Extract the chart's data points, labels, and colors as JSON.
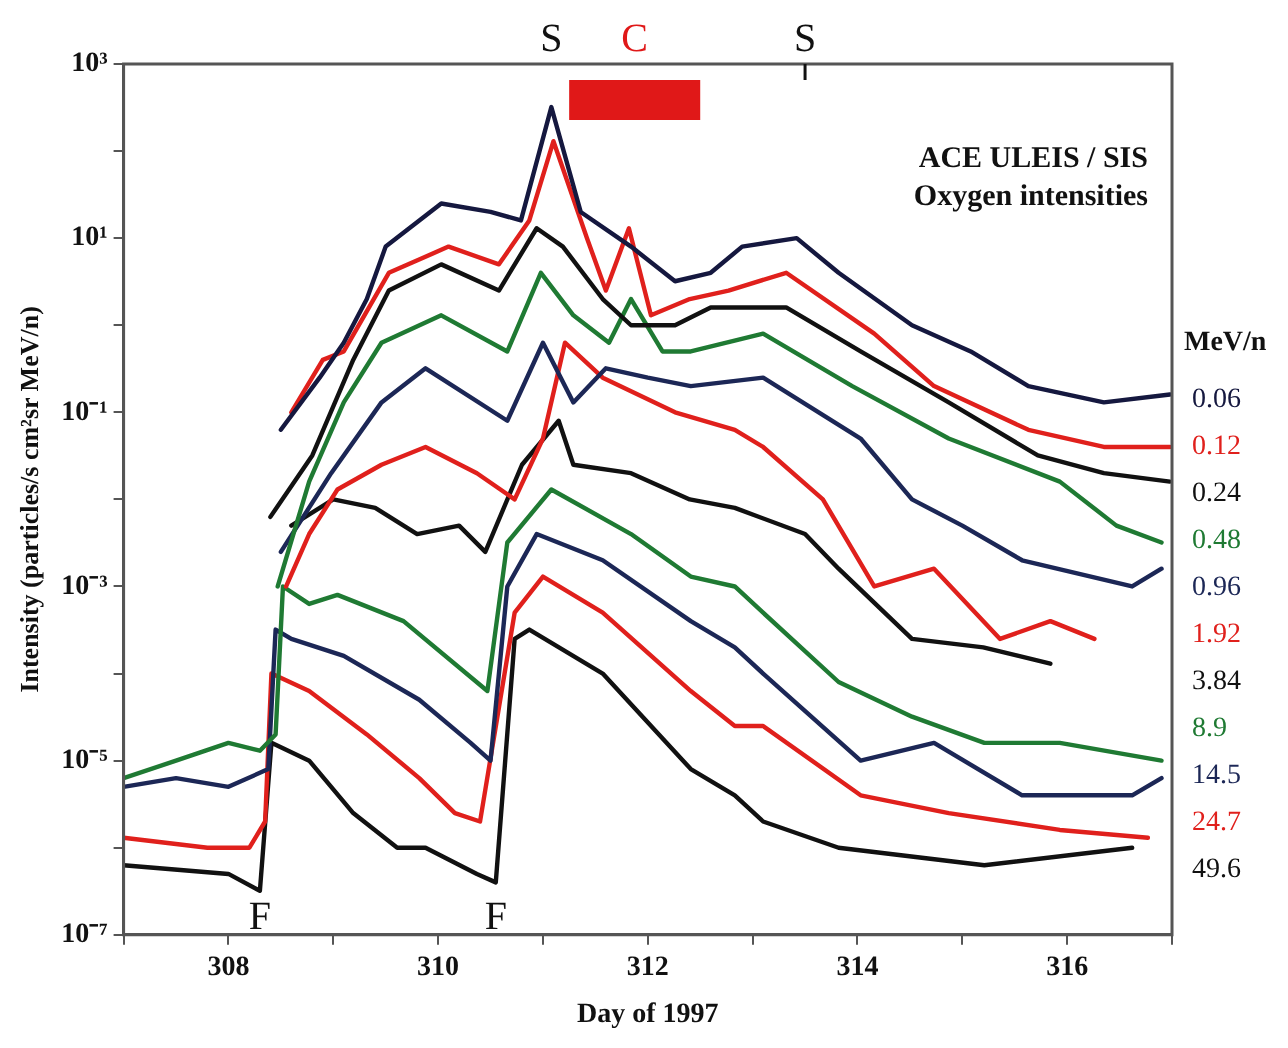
{
  "chart_data": {
    "type": "line",
    "xlabel": "Day of 1997",
    "ylabel": "Intensity (particles/s cm²sr MeV/n)",
    "legend_title": "MeV/n",
    "legend": "right",
    "grid": false,
    "log": "y",
    "marker": "none",
    "line_style": "solid",
    "xlim": [
      307,
      317
    ],
    "xticks": [
      {
        "value": 307,
        "label": null
      },
      308,
      {
        "value": 309,
        "label": null
      },
      310,
      {
        "value": 311,
        "label": null
      },
      312,
      {
        "value": 313,
        "label": null
      },
      314,
      {
        "value": 315,
        "label": null
      },
      316,
      {
        "value": 317,
        "label": null
      }
    ],
    "ylim": [
      1e-07,
      1000
    ],
    "yticks": [
      {
        "value": 1e-07,
        "label": "10⁻⁷"
      },
      {
        "value": 1e-06,
        "label": null
      },
      {
        "value": 1e-05,
        "label": "10⁻⁵"
      },
      {
        "value": 0.0001,
        "label": null
      },
      {
        "value": 0.001,
        "label": "10⁻³"
      },
      {
        "value": 0.01,
        "label": null
      },
      {
        "value": 0.1,
        "label": "10⁻¹"
      },
      {
        "value": 1,
        "label": null
      },
      {
        "value": 10,
        "label": "10¹"
      },
      {
        "value": 100,
        "label": null
      },
      {
        "value": 1000,
        "label": "10³"
      }
    ],
    "annotations": [
      "ACE ULEIS / SIS",
      "Oxygen intensities",
      {
        "text": "S",
        "x": 311.08,
        "y": 320
      },
      {
        "text": "F",
        "x": 308.3,
        "y": 3.2e-07
      },
      {
        "text": "F",
        "x": 310.55,
        "y": 4e-07
      }
    ],
    "ref_lines": [
      {
        "axis": "x",
        "value": 313.5,
        "label": "S",
        "color": "#111111"
      }
    ],
    "bands": [
      {
        "axis": "x",
        "from": 311.25,
        "to": 312.5,
        "label": "C",
        "color": "#e01818"
      }
    ],
    "series": [
      {
        "name": "0.06",
        "color": "#15183f",
        "x": [
          308.5,
          308.87,
          309.1,
          309.32,
          309.5,
          310.03,
          310.5,
          310.79,
          311.08,
          311.36,
          311.84,
          312.26,
          312.6,
          312.9,
          313.42,
          313.82,
          314.52,
          315.08,
          315.63,
          316.35,
          316.98
        ],
        "values": [
          0.063,
          0.25,
          0.63,
          2,
          8,
          25,
          20,
          16,
          320,
          20,
          8,
          3.2,
          4,
          8,
          10,
          4,
          1,
          0.5,
          0.2,
          0.13,
          0.16
        ]
      },
      {
        "name": "0.12",
        "color": "#e0201c",
        "x": [
          308.6,
          308.9,
          309.1,
          309.53,
          310.1,
          310.58,
          310.87,
          311.1,
          311.42,
          311.6,
          311.82,
          312.03,
          312.4,
          312.77,
          313.32,
          314.16,
          314.73,
          315.63,
          316.35,
          316.98
        ],
        "values": [
          0.1,
          0.4,
          0.5,
          4,
          8,
          5,
          16,
          130,
          10,
          2.5,
          13,
          1.3,
          2,
          2.5,
          4,
          0.8,
          0.2,
          0.063,
          0.04,
          0.04
        ]
      },
      {
        "name": "0.24",
        "color": "#111111",
        "x": [
          308.4,
          308.8,
          309.19,
          309.53,
          310.03,
          310.58,
          310.94,
          311.19,
          311.57,
          311.84,
          312.26,
          312.6,
          313.32,
          314.03,
          314.87,
          315.72,
          316.35,
          316.98
        ],
        "values": [
          0.0063,
          0.032,
          0.4,
          2.5,
          5,
          2.5,
          13,
          8,
          2,
          1,
          1,
          1.6,
          1.6,
          0.5,
          0.13,
          0.032,
          0.02,
          0.016
        ]
      },
      {
        "name": "0.48",
        "color": "#1f7a33",
        "x": [
          308.47,
          308.77,
          309.1,
          309.46,
          310.03,
          310.66,
          310.98,
          311.29,
          311.63,
          311.84,
          312.14,
          312.41,
          313.1,
          313.95,
          314.87,
          315.93,
          316.47,
          316.9
        ],
        "values": [
          0.001,
          0.016,
          0.13,
          0.63,
          1.3,
          0.5,
          4,
          1.3,
          0.63,
          2,
          0.5,
          0.5,
          0.8,
          0.2,
          0.05,
          0.016,
          0.005,
          0.0032
        ]
      },
      {
        "name": "0.96",
        "color": "#1c2756",
        "x": [
          308.5,
          308.98,
          309.46,
          309.88,
          310.66,
          311.0,
          311.29,
          311.6,
          312.0,
          312.41,
          313.1,
          314.03,
          314.52,
          315.0,
          315.57,
          316.62,
          316.9
        ],
        "values": [
          0.0025,
          0.02,
          0.13,
          0.32,
          0.08,
          0.63,
          0.13,
          0.32,
          0.25,
          0.2,
          0.25,
          0.05,
          0.01,
          0.005,
          0.002,
          0.001,
          0.0016
        ]
      },
      {
        "name": "1.92",
        "color": "#e0201c",
        "x": [
          308.55,
          308.77,
          309.04,
          309.46,
          309.88,
          310.37,
          310.73,
          311.0,
          311.21,
          311.57,
          312.26,
          312.83,
          313.1,
          313.67,
          314.16,
          314.73,
          315.36,
          315.84,
          316.26
        ],
        "values": [
          0.001,
          0.004,
          0.013,
          0.025,
          0.04,
          0.02,
          0.01,
          0.05,
          0.63,
          0.25,
          0.1,
          0.063,
          0.04,
          0.01,
          0.001,
          0.0016,
          0.00025,
          0.0004,
          0.00025
        ]
      },
      {
        "name": "3.84",
        "color": "#111111",
        "x": [
          308.6,
          309.0,
          309.4,
          309.8,
          310.2,
          310.45,
          310.8,
          311.15,
          311.29,
          311.84,
          312.4,
          312.83,
          313.5,
          313.82,
          314.52,
          315.2,
          315.84
        ],
        "values": [
          0.005,
          0.01,
          0.008,
          0.004,
          0.005,
          0.0025,
          0.025,
          0.08,
          0.025,
          0.02,
          0.01,
          0.008,
          0.004,
          0.0016,
          0.00025,
          0.0002,
          0.00013
        ]
      },
      {
        "name": "8.9",
        "color": "#1f7a33",
        "x": [
          307.0,
          307.5,
          308.0,
          308.3,
          308.45,
          308.52,
          308.77,
          309.04,
          309.67,
          310.47,
          310.66,
          311.08,
          311.84,
          312.41,
          312.83,
          313.1,
          313.82,
          314.52,
          315.21,
          315.93,
          316.9
        ],
        "values": [
          6.3e-06,
          1e-05,
          1.6e-05,
          1.3e-05,
          2e-05,
          0.001,
          0.00063,
          0.0008,
          0.0004,
          6.3e-05,
          0.0032,
          0.013,
          0.004,
          0.0013,
          0.001,
          0.0005,
          8e-05,
          3.2e-05,
          1.6e-05,
          1.6e-05,
          1e-05
        ]
      },
      {
        "name": "14.5",
        "color": "#1c2756",
        "x": [
          307.0,
          307.5,
          308.0,
          308.38,
          308.45,
          308.6,
          309.1,
          309.82,
          310.31,
          310.5,
          310.66,
          310.94,
          311.57,
          312.41,
          312.83,
          313.1,
          314.03,
          314.73,
          315.57,
          316.62,
          316.9
        ],
        "values": [
          5e-06,
          6.3e-06,
          5e-06,
          8e-06,
          0.00032,
          0.00025,
          0.00016,
          5e-05,
          1.6e-05,
          1e-05,
          0.001,
          0.004,
          0.002,
          0.0004,
          0.0002,
          0.0001,
          1e-05,
          1.6e-05,
          4e-06,
          4e-06,
          6.3e-06
        ]
      },
      {
        "name": "24.7",
        "color": "#e0201c",
        "x": [
          307.0,
          307.8,
          308.2,
          308.35,
          308.41,
          308.77,
          309.32,
          309.82,
          310.16,
          310.4,
          310.73,
          311.0,
          311.57,
          312.41,
          312.83,
          313.1,
          314.03,
          314.87,
          315.93,
          316.77
        ],
        "values": [
          1.3e-06,
          1e-06,
          1e-06,
          2e-06,
          0.0001,
          6.3e-05,
          2e-05,
          6.3e-06,
          2.5e-06,
          2e-06,
          0.0005,
          0.0013,
          0.0005,
          6.3e-05,
          2.5e-05,
          2.5e-05,
          4e-06,
          2.5e-06,
          1.6e-06,
          1.3e-06
        ]
      },
      {
        "name": "49.6",
        "color": "#111111",
        "x": [
          307.0,
          308.0,
          308.3,
          308.41,
          308.77,
          309.19,
          309.61,
          309.88,
          310.37,
          310.55,
          310.73,
          310.87,
          311.57,
          312.41,
          312.83,
          313.1,
          313.82,
          315.21,
          316.62
        ],
        "values": [
          6.3e-07,
          5e-07,
          3.2e-07,
          1.6e-05,
          1e-05,
          2.5e-06,
          1e-06,
          1e-06,
          5e-07,
          4e-07,
          0.00025,
          0.00032,
          0.0001,
          8e-06,
          4e-06,
          2e-06,
          1e-06,
          6.3e-07,
          1e-06
        ]
      }
    ]
  }
}
